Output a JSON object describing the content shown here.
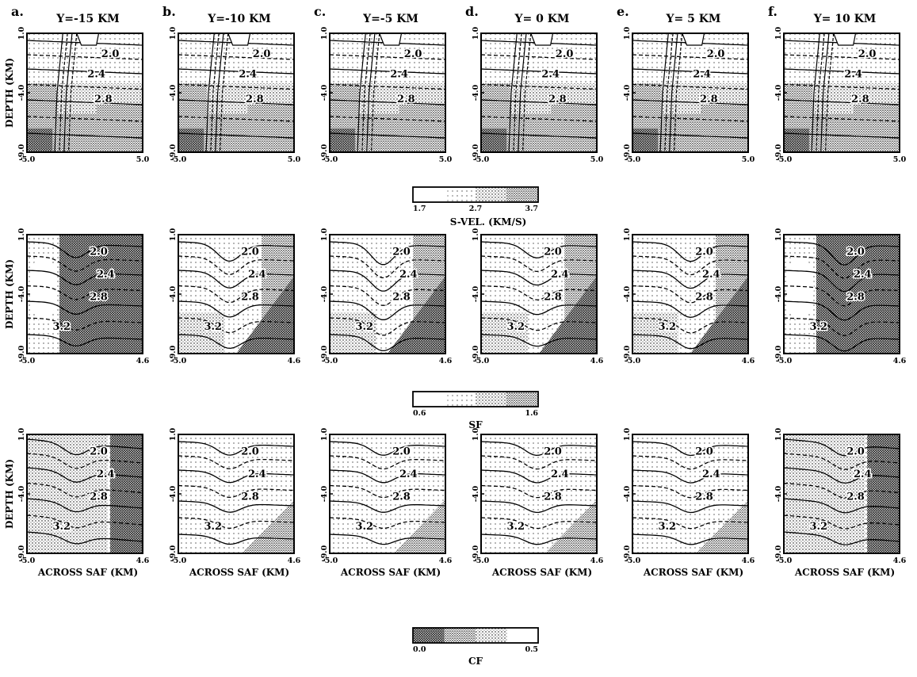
{
  "columns": [
    {
      "letter": "a.",
      "title": "Y=-15 KM"
    },
    {
      "letter": "b.",
      "title": "Y=-10 KM"
    },
    {
      "letter": "c.",
      "title": "Y=-5 KM"
    },
    {
      "letter": "d.",
      "title": "Y= 0 KM"
    },
    {
      "letter": "e.",
      "title": "Y= 5 KM"
    },
    {
      "letter": "f.",
      "title": "Y= 10 KM"
    }
  ],
  "rows": [
    {
      "id": "s-vel",
      "y_axis_label": "DEPTH (KM)",
      "y_ticks": [
        "1.0",
        "-4.0",
        "-9.0"
      ],
      "x_ticks": [
        "-5.0",
        "5.0"
      ],
      "x_axis_label": "",
      "contour_labels": [
        "2.0",
        "2.4",
        "2.8"
      ],
      "colorbar": {
        "ticks": [
          "1.7",
          "2.7",
          "3.7"
        ],
        "label": "S-VEL. (KM/S)",
        "dense_side": "right"
      }
    },
    {
      "id": "sf",
      "y_axis_label": "DEPTH (KM)",
      "y_ticks": [
        "1.0",
        "-4.0",
        "-9.0"
      ],
      "x_ticks": [
        "-5.0",
        "4.6"
      ],
      "x_axis_label": "",
      "contour_labels": [
        "2.0",
        "2.4",
        "2.8",
        "3.2"
      ],
      "colorbar": {
        "ticks": [
          "0.6",
          "1.6"
        ],
        "label": "SF",
        "dense_side": "right"
      }
    },
    {
      "id": "cf",
      "y_axis_label": "DEPTH (KM)",
      "y_ticks": [
        "1.0",
        "-4.0",
        "-9.0"
      ],
      "x_ticks": [
        "-5.0",
        "4.6"
      ],
      "x_axis_label": "ACROSS SAF (KM)",
      "contour_labels": [
        "2.0",
        "2.4",
        "2.8",
        "3.2"
      ],
      "colorbar": {
        "ticks": [
          "0.0",
          "0.5"
        ],
        "label": "CF",
        "dense_side": "left"
      }
    }
  ],
  "colors": {
    "ink": "#000000",
    "paper": "#ffffff"
  }
}
